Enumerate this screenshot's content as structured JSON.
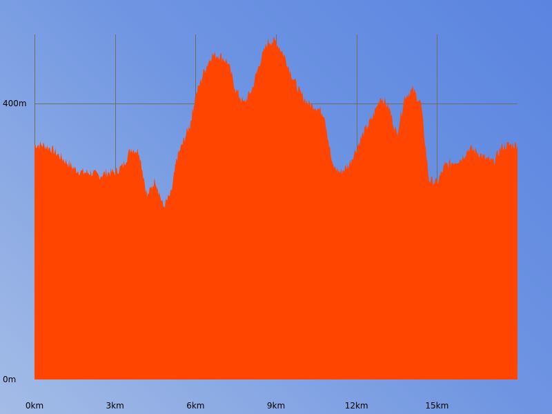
{
  "chart_data": {
    "type": "area",
    "title": "",
    "xlabel": "",
    "ylabel": "",
    "xlim": [
      0,
      18
    ],
    "ylim": [
      0,
      500
    ],
    "grid": true,
    "x_ticks": [
      {
        "value": 0,
        "label": "0km"
      },
      {
        "value": 3,
        "label": "3km"
      },
      {
        "value": 6,
        "label": "6km"
      },
      {
        "value": 9,
        "label": "9km"
      },
      {
        "value": 12,
        "label": "12km"
      },
      {
        "value": 15,
        "label": "15km"
      }
    ],
    "y_ticks": [
      {
        "value": 0,
        "label": "0m"
      },
      {
        "value": 400,
        "label": "400m"
      }
    ],
    "fill_color": "#ff4500",
    "series": [
      {
        "x": [
          0,
          0.3,
          0.6,
          0.9,
          1.2,
          1.5,
          1.8,
          2.1,
          2.4,
          2.7,
          3.0,
          3.3,
          3.6,
          3.9,
          4.2,
          4.5,
          4.8,
          5.1,
          5.3,
          5.55,
          5.8,
          6.0,
          6.3,
          6.6,
          6.9,
          7.2,
          7.5,
          7.8,
          8.1,
          8.4,
          8.7,
          9.0,
          9.3,
          9.6,
          9.9,
          10.2,
          10.5,
          10.8,
          11.1,
          11.4,
          11.7,
          12.0,
          12.3,
          12.6,
          12.9,
          13.2,
          13.5,
          13.8,
          14.1,
          14.4,
          14.7,
          15.0,
          15.3,
          15.6,
          15.9,
          16.2,
          16.5,
          16.8,
          17.1,
          17.4,
          17.7,
          18.0
        ],
        "y": [
          340,
          340,
          335,
          325,
          315,
          305,
          300,
          300,
          295,
          300,
          300,
          310,
          335,
          330,
          265,
          290,
          250,
          270,
          320,
          345,
          370,
          410,
          445,
          470,
          470,
          460,
          420,
          400,
          420,
          460,
          490,
          490,
          470,
          440,
          415,
          400,
          395,
          385,
          310,
          300,
          310,
          335,
          360,
          380,
          410,
          395,
          355,
          410,
          420,
          400,
          290,
          285,
          310,
          315,
          320,
          335,
          330,
          320,
          315,
          337,
          340,
          340
        ]
      }
    ]
  }
}
